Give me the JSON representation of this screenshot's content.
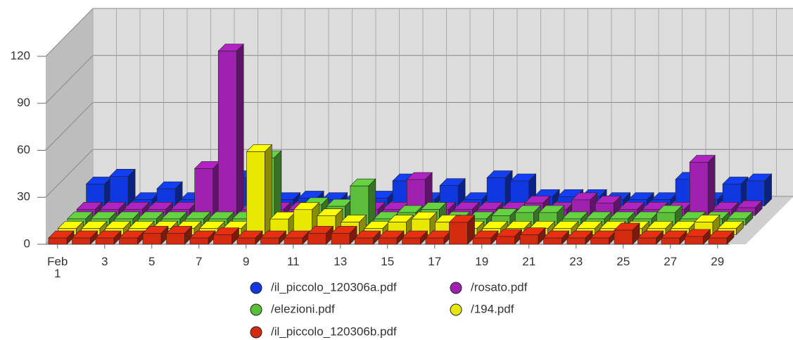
{
  "chart_data": {
    "type": "bar3d",
    "categories": [
      "Feb\n1",
      null,
      "3",
      null,
      "5",
      null,
      "7",
      null,
      "9",
      null,
      "11",
      null,
      "13",
      null,
      "15",
      null,
      "17",
      null,
      "19",
      null,
      "21",
      null,
      "23",
      null,
      "25",
      null,
      "27",
      null,
      "29"
    ],
    "series": [
      {
        "name": "/il_piccolo_120306a.pdf",
        "color": "#1038e0",
        "values": [
          14,
          19,
          4,
          11,
          4,
          4,
          18,
          4,
          4,
          5,
          4,
          4,
          5,
          16,
          4,
          13,
          4,
          18,
          16,
          6,
          6,
          6,
          4,
          4,
          4,
          17,
          4,
          14,
          16
        ]
      },
      {
        "name": "/rosato.pdf",
        "color": "#a020b0",
        "values": [
          4,
          4,
          4,
          4,
          4,
          30,
          105,
          4,
          4,
          4,
          4,
          4,
          4,
          4,
          23,
          4,
          4,
          4,
          4,
          8,
          4,
          10,
          8,
          4,
          4,
          4,
          34,
          4,
          5
        ]
      },
      {
        "name": "/elezioni.pdf",
        "color": "#5cbf3c",
        "values": [
          4,
          4,
          4,
          4,
          4,
          4,
          4,
          4,
          43,
          4,
          13,
          12,
          25,
          4,
          8,
          10,
          4,
          4,
          6,
          8,
          8,
          4,
          4,
          4,
          4,
          8,
          4,
          4,
          4
        ]
      },
      {
        "name": "/194.pdf",
        "color": "#e8e800",
        "values": [
          4,
          4,
          4,
          4,
          4,
          4,
          4,
          4,
          53,
          10,
          16,
          12,
          8,
          4,
          8,
          10,
          8,
          4,
          4,
          4,
          4,
          4,
          4,
          4,
          4,
          4,
          4,
          8,
          4
        ]
      },
      {
        "name": "/il_piccolo_120306b.pdf",
        "color": "#d42a10",
        "values": [
          4,
          4,
          4,
          4,
          7,
          7,
          4,
          6,
          4,
          4,
          4,
          7,
          7,
          4,
          4,
          4,
          4,
          14,
          4,
          5,
          6,
          4,
          4,
          4,
          9,
          4,
          4,
          5,
          4
        ]
      }
    ],
    "ylim": [
      0,
      120
    ],
    "yticks": [
      0,
      30,
      60,
      90,
      120
    ],
    "grid": true
  }
}
